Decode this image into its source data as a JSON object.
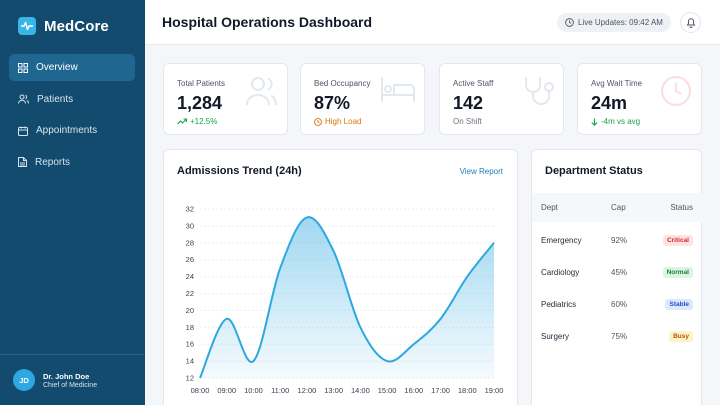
{
  "sidebar": {
    "brand": "MedCore",
    "items": [
      {
        "label": "Overview",
        "icon": "grid-icon",
        "active": true
      },
      {
        "label": "Patients",
        "icon": "users-icon",
        "active": false
      },
      {
        "label": "Appointments",
        "icon": "calendar-icon",
        "active": false
      },
      {
        "label": "Reports",
        "icon": "file-icon",
        "active": false
      }
    ],
    "user": {
      "initials": "JD",
      "name": "Dr. John Doe",
      "role": "Chief of Medicine"
    }
  },
  "header": {
    "title": "Hospital Operations Dashboard",
    "live_updates": "Live Updates: 09:42 AM"
  },
  "stats": [
    {
      "label": "Total Patients",
      "value": "1,284",
      "sub": "+12.5%",
      "sub_color": "#16a34a",
      "icon": "users-icon"
    },
    {
      "label": "Bed Occupancy",
      "value": "87%",
      "sub": "High Load",
      "sub_color": "#d97706",
      "icon": "bed-icon"
    },
    {
      "label": "Active Staff",
      "value": "142",
      "sub": "On Shift",
      "sub_color": "#6b7280",
      "icon": "stethoscope-icon"
    },
    {
      "label": "Avg Wait Time",
      "value": "24m",
      "sub": "-4m vs avg",
      "sub_color": "#16a34a",
      "icon": "clock-icon"
    }
  ],
  "admissions": {
    "title": "Admissions Trend (24h)",
    "link": "View Report"
  },
  "chart_data": {
    "type": "area",
    "title": "Admissions Trend (24h)",
    "xlabel": "",
    "ylabel": "",
    "categories": [
      "08:00",
      "09:00",
      "10:00",
      "11:00",
      "12:00",
      "13:00",
      "14:00",
      "15:00",
      "16:00",
      "17:00",
      "18:00",
      "19:00"
    ],
    "values": [
      12,
      19,
      14,
      25,
      31,
      27,
      18,
      14,
      16,
      19,
      24,
      28
    ],
    "yticks": [
      12,
      14,
      16,
      18,
      20,
      22,
      24,
      26,
      28,
      30,
      32
    ],
    "ylim": [
      12,
      32
    ],
    "grid": true,
    "color": "#2ea8e0"
  },
  "departments": {
    "title": "Department Status",
    "columns": [
      "Dept",
      "Cap",
      "Status"
    ],
    "rows": [
      {
        "dept": "Emergency",
        "cap": "92%",
        "status": "Critical",
        "fg": "#dc2626",
        "bg": "#fde4e4"
      },
      {
        "dept": "Cardiology",
        "cap": "45%",
        "status": "Normal",
        "fg": "#15803d",
        "bg": "#dcf5e3"
      },
      {
        "dept": "Pediatrics",
        "cap": "60%",
        "status": "Stable",
        "fg": "#1d4ed8",
        "bg": "#dde8fb"
      },
      {
        "dept": "Surgery",
        "cap": "75%",
        "status": "Busy",
        "fg": "#b45309",
        "bg": "#fdf2c8"
      }
    ]
  }
}
